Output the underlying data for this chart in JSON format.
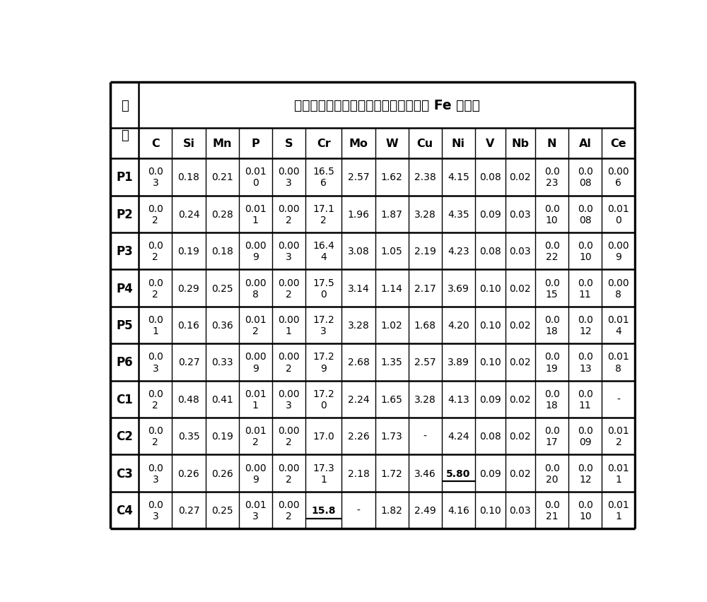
{
  "title": "化学成分，单位为质量百分比，其余为 Fe 及杂质",
  "col_header": [
    "C",
    "Si",
    "Mn",
    "P",
    "S",
    "Cr",
    "Mo",
    "W",
    "Cu",
    "Ni",
    "V",
    "Nb",
    "N",
    "Al",
    "Ce"
  ],
  "row_labels": [
    "P1",
    "P2",
    "P3",
    "P4",
    "P5",
    "P6",
    "C1",
    "C2",
    "C3",
    "C4"
  ],
  "rows": [
    [
      "0.03",
      "0.18",
      "0.21",
      "0.010",
      "0.003",
      "16.56",
      "2.57",
      "1.62",
      "2.38",
      "4.15",
      "0.08",
      "0.02",
      "0.023",
      "0.008",
      "0.006"
    ],
    [
      "0.02",
      "0.24",
      "0.28",
      "0.011",
      "0.002",
      "17.12",
      "1.96",
      "1.87",
      "3.28",
      "4.35",
      "0.09",
      "0.03",
      "0.010",
      "0.008",
      "0.010"
    ],
    [
      "0.02",
      "0.19",
      "0.18",
      "0.009",
      "0.003",
      "16.44",
      "3.08",
      "1.05",
      "2.19",
      "4.23",
      "0.08",
      "0.03",
      "0.022",
      "0.010",
      "0.009"
    ],
    [
      "0.02",
      "0.29",
      "0.25",
      "0.008",
      "0.002",
      "17.50",
      "3.14",
      "1.14",
      "2.17",
      "3.69",
      "0.10",
      "0.02",
      "0.015",
      "0.011",
      "0.008"
    ],
    [
      "0.01",
      "0.16",
      "0.36",
      "0.012",
      "0.001",
      "17.23",
      "3.28",
      "1.02",
      "1.68",
      "4.20",
      "0.10",
      "0.02",
      "0.018",
      "0.012",
      "0.014"
    ],
    [
      "0.03",
      "0.27",
      "0.33",
      "0.009",
      "0.002",
      "17.29",
      "2.68",
      "1.35",
      "2.57",
      "3.89",
      "0.10",
      "0.02",
      "0.019",
      "0.013",
      "0.018"
    ],
    [
      "0.02",
      "0.48",
      "0.41",
      "0.011",
      "0.003",
      "17.20",
      "2.24",
      "1.65",
      "3.28",
      "4.13",
      "0.09",
      "0.02",
      "0.018",
      "0.011",
      "-"
    ],
    [
      "0.02",
      "0.35",
      "0.19",
      "0.012",
      "0.002",
      "17.0",
      "2.26",
      "1.73",
      "-",
      "4.24",
      "0.08",
      "0.02",
      "0.017",
      "0.009",
      "0.012"
    ],
    [
      "0.03",
      "0.26",
      "0.26",
      "0.009",
      "0.002",
      "17.31",
      "2.18",
      "1.72",
      "3.46",
      "5.80",
      "0.09",
      "0.02",
      "0.020",
      "0.012",
      "0.011"
    ],
    [
      "0.03",
      "0.27",
      "0.25",
      "0.013",
      "0.002",
      "15.8",
      "-",
      "1.82",
      "2.49",
      "4.16",
      "0.10",
      "0.03",
      "0.021",
      "0.010",
      "0.011"
    ]
  ],
  "underline_cells": [
    [
      8,
      9
    ],
    [
      9,
      5
    ]
  ],
  "split_cols_map": {
    "0": 3,
    "3": 4,
    "4": 4,
    "5": 4,
    "12": 3,
    "13": 3,
    "14": 4
  },
  "background_color": "#ffffff",
  "outer_lw": 2.5,
  "inner_lw": 1.8,
  "col_lw": 1.0,
  "title_fontsize": 13.5,
  "header_fontsize": 11.5,
  "cell_fontsize": 10.0,
  "label_fontsize": 12.0
}
